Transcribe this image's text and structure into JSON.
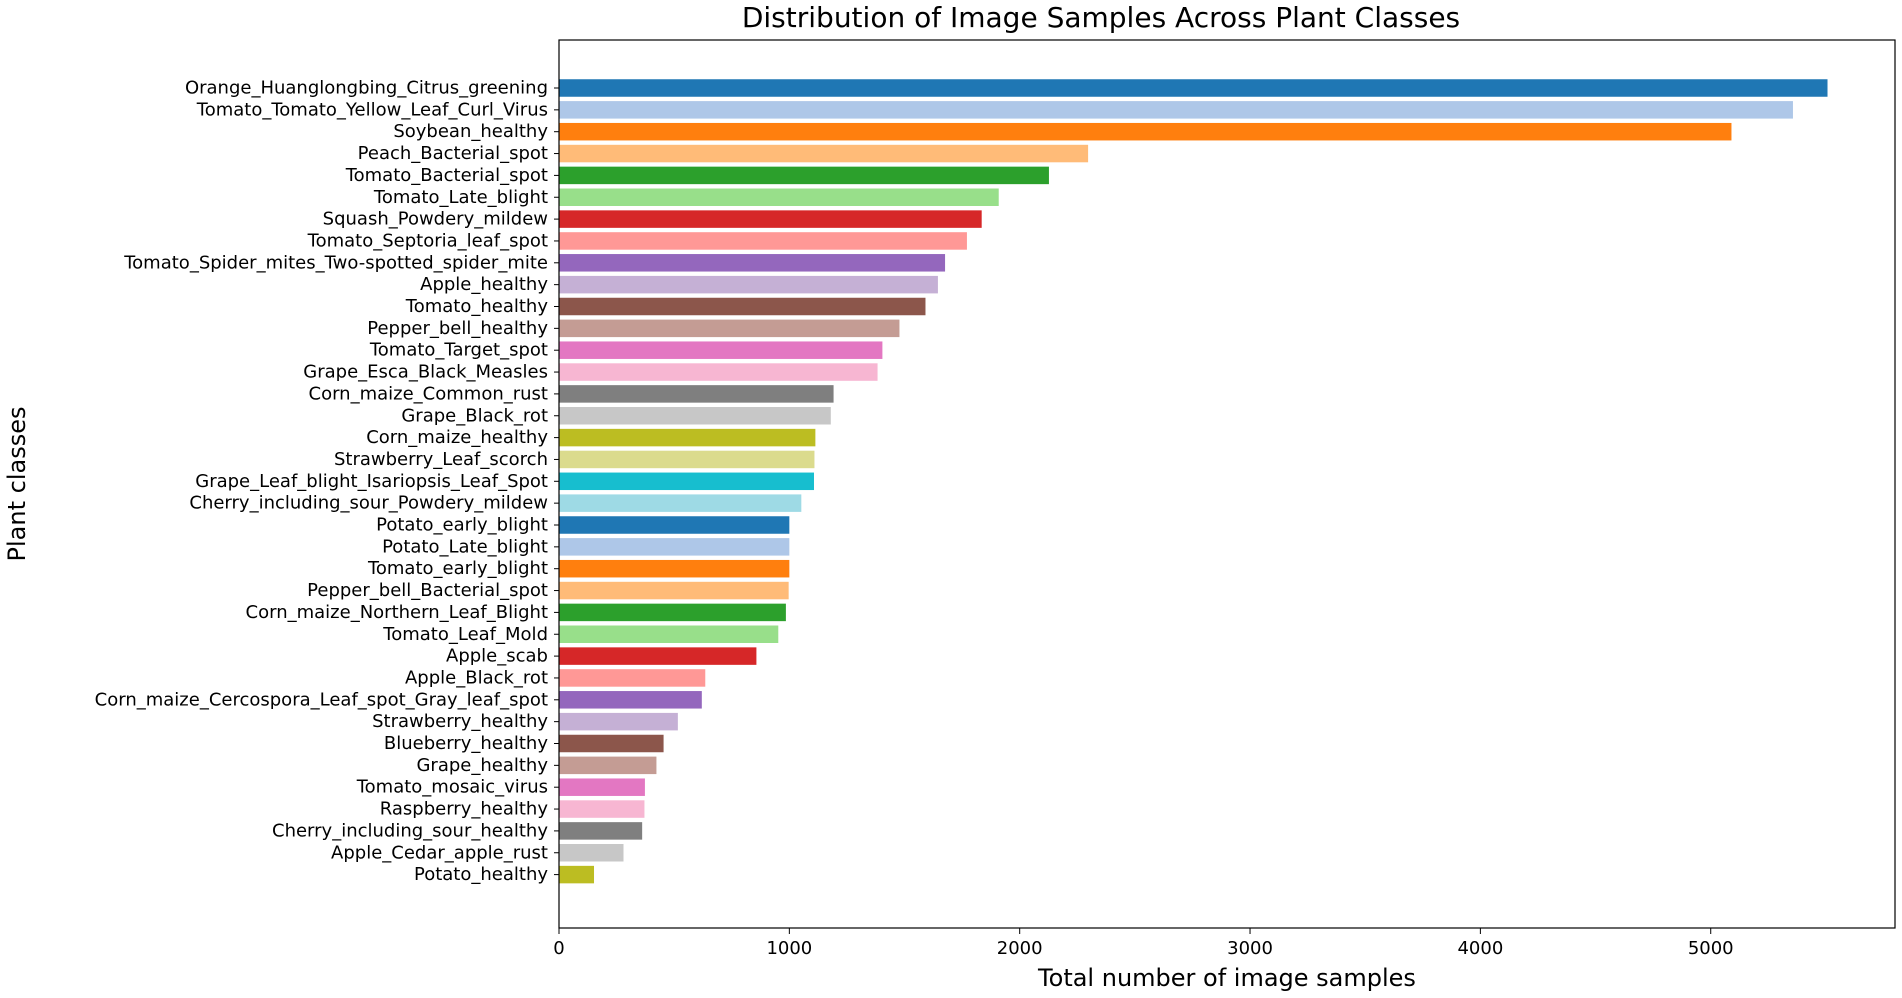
{
  "chart_data": {
    "type": "bar",
    "orientation": "horizontal",
    "title": "Distribution of Image Samples Across Plant Classes",
    "xlabel": "Total number of image samples",
    "ylabel": "Plant classes",
    "xlim": [
      0,
      5800
    ],
    "xticks": [
      0,
      1000,
      2000,
      3000,
      4000,
      5000
    ],
    "grid": false,
    "categories": [
      "Orange_Huanglongbing_Citrus_greening",
      "Tomato_Tomato_Yellow_Leaf_Curl_Virus",
      "Soybean_healthy",
      "Peach_Bacterial_spot",
      "Tomato_Bacterial_spot",
      "Tomato_Late_blight",
      "Squash_Powdery_mildew",
      "Tomato_Septoria_leaf_spot",
      "Tomato_Spider_mites_Two-spotted_spider_mite",
      "Apple_healthy",
      "Tomato_healthy",
      "Pepper_bell_healthy",
      "Tomato_Target_spot",
      "Grape_Esca_Black_Measles",
      "Corn_maize_Common_rust",
      "Grape_Black_rot",
      "Corn_maize_healthy",
      "Strawberry_Leaf_scorch",
      "Grape_Leaf_blight_Isariopsis_Leaf_Spot",
      "Cherry_including_sour_Powdery_mildew",
      "Potato_early_blight",
      "Potato_Late_blight",
      "Tomato_early_blight",
      "Pepper_bell_Bacterial_spot",
      "Corn_maize_Northern_Leaf_Blight",
      "Tomato_Leaf_Mold",
      "Apple_scab",
      "Apple_Black_rot",
      "Corn_maize_Cercospora_Leaf_spot_Gray_leaf_spot",
      "Strawberry_healthy",
      "Blueberry_healthy",
      "Grape_healthy",
      "Tomato_mosaic_virus",
      "Raspberry_healthy",
      "Cherry_including_sour_healthy",
      "Apple_Cedar_apple_rust",
      "Potato_healthy"
    ],
    "values": [
      5507,
      5357,
      5090,
      2297,
      2127,
      1909,
      1835,
      1771,
      1676,
      1645,
      1591,
      1478,
      1404,
      1383,
      1192,
      1180,
      1113,
      1109,
      1107,
      1052,
      1000,
      1000,
      1000,
      997,
      985,
      952,
      857,
      635,
      620,
      516,
      454,
      423,
      373,
      371,
      361,
      280,
      152
    ],
    "colors": [
      "#1f77b4",
      "#aec7e8",
      "#ff7f0e",
      "#ffbb78",
      "#2ca02c",
      "#98df8a",
      "#d62728",
      "#ff9896",
      "#9467bd",
      "#c5b0d5",
      "#8c564b",
      "#c49c94",
      "#e377c2",
      "#f7b6d2",
      "#7f7f7f",
      "#c7c7c7",
      "#bcbd22",
      "#dbdb8d",
      "#17becf",
      "#9edae5",
      "#1f77b4",
      "#aec7e8",
      "#ff7f0e",
      "#ffbb78",
      "#2ca02c",
      "#98df8a",
      "#d62728",
      "#ff9896",
      "#9467bd",
      "#c5b0d5",
      "#8c564b",
      "#c49c94",
      "#e377c2",
      "#f7b6d2",
      "#7f7f7f",
      "#c7c7c7",
      "#bcbd22"
    ]
  }
}
